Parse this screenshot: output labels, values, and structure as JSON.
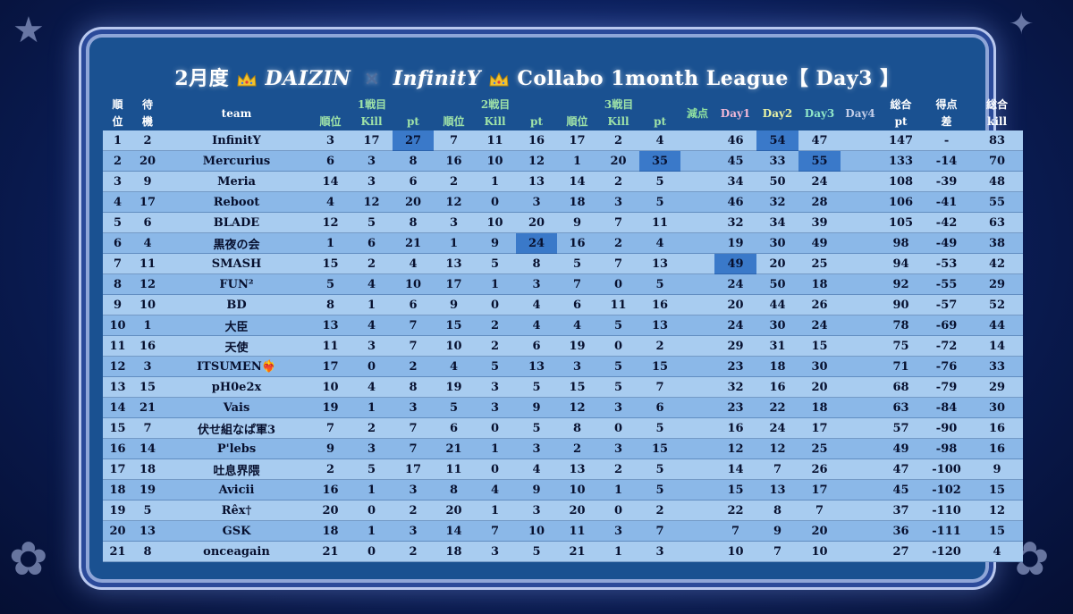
{
  "title": {
    "prefix": "2月度",
    "crown1": "crown-icon",
    "brand1": "DAIZIN",
    "cross": "×",
    "brand2": "InfinitY",
    "crown2": "crown-icon",
    "suffix": "Collabo 1month League【 Day3 】"
  },
  "headers": {
    "rank_a": "順",
    "rank_b": "位",
    "wait_a": "待",
    "wait_b": "機",
    "team": "team",
    "round1": "1戦目",
    "round2": "2戦目",
    "round3": "3戦目",
    "sub_rank": "順位",
    "sub_kill": "Kill",
    "sub_pt": "pt",
    "penalty": "減点",
    "day1": "Day1",
    "day2": "Day2",
    "day3": "Day3",
    "day4": "Day4",
    "total_pt_a": "総合",
    "total_pt_b": "pt",
    "diff_a": "得点",
    "diff_b": "差",
    "total_kill_a": "総合",
    "total_kill_b": "kill"
  },
  "highlight_color": "#3a79c9",
  "rows": [
    {
      "rank": "1",
      "wait": "2",
      "team": "InfinitY",
      "r1": [
        "3",
        "17",
        "27"
      ],
      "r2": [
        "7",
        "11",
        "16"
      ],
      "r3": [
        "17",
        "2",
        "4"
      ],
      "pen": "",
      "d1": "46",
      "d2": "54",
      "d3": "47",
      "d4": "",
      "tpt": "147",
      "diff": "-",
      "tk": "83"
    },
    {
      "rank": "2",
      "wait": "20",
      "team": "Mercurius",
      "r1": [
        "6",
        "3",
        "8"
      ],
      "r2": [
        "16",
        "10",
        "12"
      ],
      "r3": [
        "1",
        "20",
        "35"
      ],
      "pen": "",
      "d1": "45",
      "d2": "33",
      "d3": "55",
      "d4": "",
      "tpt": "133",
      "diff": "-14",
      "tk": "70"
    },
    {
      "rank": "3",
      "wait": "9",
      "team": "Meria",
      "r1": [
        "14",
        "3",
        "6"
      ],
      "r2": [
        "2",
        "1",
        "13"
      ],
      "r3": [
        "14",
        "2",
        "5"
      ],
      "pen": "",
      "d1": "34",
      "d2": "50",
      "d3": "24",
      "d4": "",
      "tpt": "108",
      "diff": "-39",
      "tk": "48"
    },
    {
      "rank": "4",
      "wait": "17",
      "team": "Reboot",
      "r1": [
        "4",
        "12",
        "20"
      ],
      "r2": [
        "12",
        "0",
        "3"
      ],
      "r3": [
        "18",
        "3",
        "5"
      ],
      "pen": "",
      "d1": "46",
      "d2": "32",
      "d3": "28",
      "d4": "",
      "tpt": "106",
      "diff": "-41",
      "tk": "55"
    },
    {
      "rank": "5",
      "wait": "6",
      "team": "BLADE",
      "r1": [
        "12",
        "5",
        "8"
      ],
      "r2": [
        "3",
        "10",
        "20"
      ],
      "r3": [
        "9",
        "7",
        "11"
      ],
      "pen": "",
      "d1": "32",
      "d2": "34",
      "d3": "39",
      "d4": "",
      "tpt": "105",
      "diff": "-42",
      "tk": "63"
    },
    {
      "rank": "6",
      "wait": "4",
      "team": "黒夜の会",
      "r1": [
        "1",
        "6",
        "21"
      ],
      "r2": [
        "1",
        "9",
        "24"
      ],
      "r3": [
        "16",
        "2",
        "4"
      ],
      "pen": "",
      "d1": "19",
      "d2": "30",
      "d3": "49",
      "d4": "",
      "tpt": "98",
      "diff": "-49",
      "tk": "38"
    },
    {
      "rank": "7",
      "wait": "11",
      "team": "SMASH",
      "r1": [
        "15",
        "2",
        "4"
      ],
      "r2": [
        "13",
        "5",
        "8"
      ],
      "r3": [
        "5",
        "7",
        "13"
      ],
      "pen": "",
      "d1": "49",
      "d2": "20",
      "d3": "25",
      "d4": "",
      "tpt": "94",
      "diff": "-53",
      "tk": "42"
    },
    {
      "rank": "8",
      "wait": "12",
      "team": "FUN²",
      "r1": [
        "5",
        "4",
        "10"
      ],
      "r2": [
        "17",
        "1",
        "3"
      ],
      "r3": [
        "7",
        "0",
        "5"
      ],
      "pen": "",
      "d1": "24",
      "d2": "50",
      "d3": "18",
      "d4": "",
      "tpt": "92",
      "diff": "-55",
      "tk": "29"
    },
    {
      "rank": "9",
      "wait": "10",
      "team": "BD",
      "r1": [
        "8",
        "1",
        "6"
      ],
      "r2": [
        "9",
        "0",
        "4"
      ],
      "r3": [
        "6",
        "11",
        "16"
      ],
      "pen": "",
      "d1": "20",
      "d2": "44",
      "d3": "26",
      "d4": "",
      "tpt": "90",
      "diff": "-57",
      "tk": "52"
    },
    {
      "rank": "10",
      "wait": "1",
      "team": "大臣",
      "r1": [
        "13",
        "4",
        "7"
      ],
      "r2": [
        "15",
        "2",
        "4"
      ],
      "r3": [
        "4",
        "5",
        "13"
      ],
      "pen": "",
      "d1": "24",
      "d2": "30",
      "d3": "24",
      "d4": "",
      "tpt": "78",
      "diff": "-69",
      "tk": "44"
    },
    {
      "rank": "11",
      "wait": "16",
      "team": "天使",
      "r1": [
        "11",
        "3",
        "7"
      ],
      "r2": [
        "10",
        "2",
        "6"
      ],
      "r3": [
        "19",
        "0",
        "2"
      ],
      "pen": "",
      "d1": "29",
      "d2": "31",
      "d3": "15",
      "d4": "",
      "tpt": "75",
      "diff": "-72",
      "tk": "14"
    },
    {
      "rank": "12",
      "wait": "3",
      "team": "ITSUMEN❤️‍🔥",
      "r1": [
        "17",
        "0",
        "2"
      ],
      "r2": [
        "4",
        "5",
        "13"
      ],
      "r3": [
        "3",
        "5",
        "15"
      ],
      "pen": "",
      "d1": "23",
      "d2": "18",
      "d3": "30",
      "d4": "",
      "tpt": "71",
      "diff": "-76",
      "tk": "33"
    },
    {
      "rank": "13",
      "wait": "15",
      "team": "pH0e2x",
      "r1": [
        "10",
        "4",
        "8"
      ],
      "r2": [
        "19",
        "3",
        "5"
      ],
      "r3": [
        "15",
        "5",
        "7"
      ],
      "pen": "",
      "d1": "32",
      "d2": "16",
      "d3": "20",
      "d4": "",
      "tpt": "68",
      "diff": "-79",
      "tk": "29"
    },
    {
      "rank": "14",
      "wait": "21",
      "team": "Vais",
      "r1": [
        "19",
        "1",
        "3"
      ],
      "r2": [
        "5",
        "3",
        "9"
      ],
      "r3": [
        "12",
        "3",
        "6"
      ],
      "pen": "",
      "d1": "23",
      "d2": "22",
      "d3": "18",
      "d4": "",
      "tpt": "63",
      "diff": "-84",
      "tk": "30"
    },
    {
      "rank": "15",
      "wait": "7",
      "team": "伏せ組なぱ軍3",
      "r1": [
        "7",
        "2",
        "7"
      ],
      "r2": [
        "6",
        "0",
        "5"
      ],
      "r3": [
        "8",
        "0",
        "5"
      ],
      "pen": "",
      "d1": "16",
      "d2": "24",
      "d3": "17",
      "d4": "",
      "tpt": "57",
      "diff": "-90",
      "tk": "16"
    },
    {
      "rank": "16",
      "wait": "14",
      "team": "P'lebs",
      "r1": [
        "9",
        "3",
        "7"
      ],
      "r2": [
        "21",
        "1",
        "3"
      ],
      "r3": [
        "2",
        "3",
        "15"
      ],
      "pen": "",
      "d1": "12",
      "d2": "12",
      "d3": "25",
      "d4": "",
      "tpt": "49",
      "diff": "-98",
      "tk": "16"
    },
    {
      "rank": "17",
      "wait": "18",
      "team": "吐息界隈",
      "r1": [
        "2",
        "5",
        "17"
      ],
      "r2": [
        "11",
        "0",
        "4"
      ],
      "r3": [
        "13",
        "2",
        "5"
      ],
      "pen": "",
      "d1": "14",
      "d2": "7",
      "d3": "26",
      "d4": "",
      "tpt": "47",
      "diff": "-100",
      "tk": "9"
    },
    {
      "rank": "18",
      "wait": "19",
      "team": "Avicii",
      "r1": [
        "16",
        "1",
        "3"
      ],
      "r2": [
        "8",
        "4",
        "9"
      ],
      "r3": [
        "10",
        "1",
        "5"
      ],
      "pen": "",
      "d1": "15",
      "d2": "13",
      "d3": "17",
      "d4": "",
      "tpt": "45",
      "diff": "-102",
      "tk": "15"
    },
    {
      "rank": "19",
      "wait": "5",
      "team": "Rêx†",
      "r1": [
        "20",
        "0",
        "2"
      ],
      "r2": [
        "20",
        "1",
        "3"
      ],
      "r3": [
        "20",
        "0",
        "2"
      ],
      "pen": "",
      "d1": "22",
      "d2": "8",
      "d3": "7",
      "d4": "",
      "tpt": "37",
      "diff": "-110",
      "tk": "12"
    },
    {
      "rank": "20",
      "wait": "13",
      "team": "GSK",
      "r1": [
        "18",
        "1",
        "3"
      ],
      "r2": [
        "14",
        "7",
        "10"
      ],
      "r3": [
        "11",
        "3",
        "7"
      ],
      "pen": "",
      "d1": "7",
      "d2": "9",
      "d3": "20",
      "d4": "",
      "tpt": "36",
      "diff": "-111",
      "tk": "15"
    },
    {
      "rank": "21",
      "wait": "8",
      "team": "onceagain",
      "r1": [
        "21",
        "0",
        "2"
      ],
      "r2": [
        "18",
        "3",
        "5"
      ],
      "r3": [
        "21",
        "1",
        "3"
      ],
      "pen": "",
      "d1": "10",
      "d2": "7",
      "d3": "10",
      "d4": "",
      "tpt": "27",
      "diff": "-120",
      "tk": "4"
    }
  ]
}
